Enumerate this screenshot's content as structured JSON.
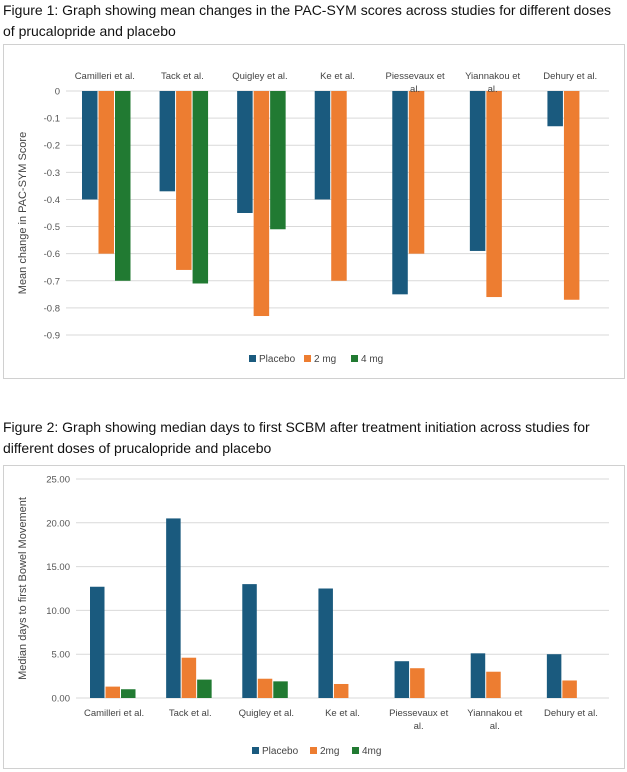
{
  "captions": {
    "fig1": "Figure 1: Graph showing mean changes in the PAC-SYM scores across studies for different doses of prucalopride and placebo",
    "fig2": "Figure 2: Graph showing median days to first SCBM after treatment initiation across studies for different doses of prucalopride and placebo"
  },
  "colors": {
    "Placebo": "#1a5a7e",
    "2 mg": "#ed7d31",
    "4 mg": "#217a32"
  },
  "chart_data": [
    {
      "type": "bar",
      "ylabel": "Mean change in PAC-SYM Score",
      "xlabel": "",
      "categories": [
        "Camilleri et al.",
        "Tack et al.",
        "Quigley et al.",
        "Ke et al.",
        "Piessevaux et al.",
        "Yiannakou et al.",
        "Dehury et al."
      ],
      "category_lines": [
        [
          "Camilleri et al."
        ],
        [
          "Tack et al."
        ],
        [
          "Quigley et al."
        ],
        [
          "Ke et al."
        ],
        [
          "Piessevaux et",
          "al."
        ],
        [
          "Yiannakou et",
          "al."
        ],
        [
          "Dehury et al."
        ]
      ],
      "ylim": [
        -0.9,
        0
      ],
      "yticks": [
        "0",
        "-0.1",
        "-0.2",
        "-0.3",
        "-0.4",
        "-0.5",
        "-0.6",
        "-0.7",
        "-0.8",
        "-0.9"
      ],
      "grid": true,
      "legend_position": "bottom",
      "series": [
        {
          "name": "Placebo",
          "values": [
            -0.4,
            -0.37,
            -0.45,
            -0.4,
            -0.75,
            -0.59,
            -0.13
          ]
        },
        {
          "name": "2 mg",
          "values": [
            -0.6,
            -0.66,
            -0.83,
            -0.7,
            -0.6,
            -0.76,
            -0.77
          ]
        },
        {
          "name": "4 mg",
          "values": [
            -0.7,
            -0.71,
            -0.51,
            null,
            null,
            null,
            null
          ]
        }
      ]
    },
    {
      "type": "bar",
      "ylabel": "Median days to first Bowel Movement",
      "xlabel": "",
      "categories": [
        "Camilleri et al.",
        "Tack et al.",
        "Quigley et al.",
        "Ke et al.",
        "Piessevaux et al.",
        "Yiannakou et al.",
        "Dehury et al."
      ],
      "category_lines": [
        [
          "Camilleri et al."
        ],
        [
          "Tack et al."
        ],
        [
          "Quigley et al."
        ],
        [
          "Ke et al."
        ],
        [
          "Piessevaux et",
          "al."
        ],
        [
          "Yiannakou et",
          "al."
        ],
        [
          "Dehury et al."
        ]
      ],
      "ylim": [
        0,
        25
      ],
      "yticks": [
        "0.00",
        "5.00",
        "10.00",
        "15.00",
        "20.00",
        "25.00"
      ],
      "grid": true,
      "legend_position": "bottom",
      "series": [
        {
          "name": "Placebo",
          "values": [
            12.7,
            20.5,
            13.0,
            12.5,
            4.2,
            5.1,
            5.0
          ]
        },
        {
          "name": "2mg",
          "values": [
            1.3,
            4.6,
            2.2,
            1.6,
            3.4,
            3.0,
            2.0
          ]
        },
        {
          "name": "4mg",
          "values": [
            1.0,
            2.1,
            1.9,
            null,
            null,
            null,
            null
          ]
        }
      ]
    }
  ]
}
